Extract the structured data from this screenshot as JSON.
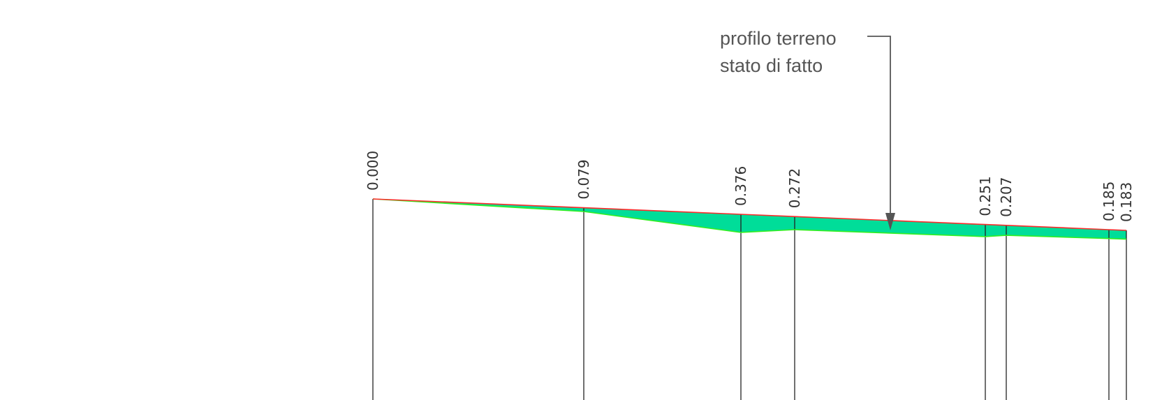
{
  "callout": {
    "line1": "profilo terreno",
    "line2": "stato di fatto"
  },
  "colors": {
    "background": "#ffffff",
    "design_line": "#ff2a2a",
    "terrain_line": "#33ee22",
    "fill": "#00dd99",
    "station_line": "#222222",
    "text": "#555555"
  },
  "stations": [
    {
      "label": "0.000",
      "depth": 0.0
    },
    {
      "label": "0.079",
      "depth": 0.079
    },
    {
      "label": "0.376",
      "depth": 0.376
    },
    {
      "label": "0.272",
      "depth": 0.272
    },
    {
      "label": "0.251",
      "depth": 0.251
    },
    {
      "label": "0.207",
      "depth": 0.207
    },
    {
      "label": "0.185",
      "depth": 0.185
    },
    {
      "label": "0.183",
      "depth": 0.183
    }
  ]
}
